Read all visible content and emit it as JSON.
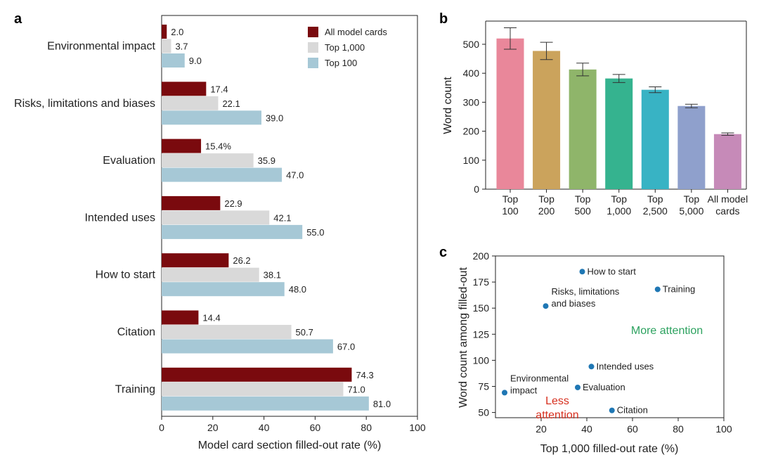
{
  "colors": {
    "all_model_cards": "#7a0a0e",
    "top_1000": "#d9d9d9",
    "top_100": "#a6c8d6",
    "scatter_point": "#1f77b4",
    "more_attention": "#2ca25f",
    "less_attention": "#d7301f",
    "bar_b": [
      "#e9879a",
      "#cba35c",
      "#8fb56a",
      "#35b38f",
      "#38b3c4",
      "#8fa0cc",
      "#c68ab8"
    ]
  },
  "chart_data": [
    {
      "panel": "a",
      "type": "bar",
      "orientation": "horizontal",
      "categories": [
        "Environmental impact",
        "Risks, limitations and biases",
        "Evaluation",
        "Intended uses",
        "How to start",
        "Citation",
        "Training"
      ],
      "series": [
        {
          "name": "All model cards",
          "values": [
            2.0,
            17.4,
            15.4,
            22.9,
            26.2,
            14.4,
            74.3
          ]
        },
        {
          "name": "Top 1,000",
          "values": [
            3.7,
            22.1,
            35.9,
            42.1,
            38.1,
            50.7,
            71.0
          ]
        },
        {
          "name": "Top 100",
          "values": [
            9.0,
            39.0,
            47.0,
            55.0,
            48.0,
            67.0,
            81.0
          ]
        }
      ],
      "value_labels": [
        [
          "2.0",
          "17.4",
          "15.4%",
          "22.9",
          "26.2",
          "14.4",
          "74.3"
        ],
        [
          "3.7",
          "22.1",
          "35.9",
          "42.1",
          "38.1",
          "50.7",
          "71.0"
        ],
        [
          "9.0",
          "39.0",
          "47.0",
          "55.0",
          "48.0",
          "67.0",
          "81.0"
        ]
      ],
      "xlabel": "Model card section filled-out rate (%)",
      "xlim": [
        0,
        100
      ],
      "xticks": [
        "0",
        "20",
        "40",
        "60",
        "80",
        "100"
      ],
      "legend": "top-right"
    },
    {
      "panel": "b",
      "type": "bar",
      "categories": [
        [
          "Top",
          "100"
        ],
        [
          "Top",
          "200"
        ],
        [
          "Top",
          "500"
        ],
        [
          "Top",
          "1,000"
        ],
        [
          "Top",
          "2,500"
        ],
        [
          "Top",
          "5,000"
        ],
        [
          "All model",
          "cards"
        ]
      ],
      "values": [
        520,
        477,
        413,
        382,
        343,
        287,
        190
      ],
      "errors": [
        37,
        30,
        22,
        14,
        10,
        6,
        4
      ],
      "ylabel": "Word count",
      "ylim": [
        0,
        580
      ],
      "yticks": [
        "0",
        "100",
        "200",
        "300",
        "400",
        "500"
      ],
      "grid": false
    },
    {
      "panel": "c",
      "type": "scatter",
      "points": [
        {
          "x": 38,
          "y": 185,
          "label": [
            "How to start"
          ]
        },
        {
          "x": 71,
          "y": 168,
          "label": [
            "Training"
          ]
        },
        {
          "x": 22,
          "y": 152,
          "label": [
            "Risks, limitations",
            "and biases"
          ]
        },
        {
          "x": 42,
          "y": 94,
          "label": [
            "Intended uses"
          ]
        },
        {
          "x": 36,
          "y": 74,
          "label": [
            "Evaluation"
          ]
        },
        {
          "x": 4,
          "y": 69,
          "label": [
            "Environmental",
            "impact"
          ]
        },
        {
          "x": 51,
          "y": 52,
          "label": [
            "Citation"
          ]
        }
      ],
      "annotations": [
        {
          "text": [
            "More attention"
          ],
          "color_key": "more_attention"
        },
        {
          "text": [
            "Less",
            "attention"
          ],
          "color_key": "less_attention"
        }
      ],
      "xlabel": "Top 1,000 filled-out rate (%)",
      "ylabel": "Word count among filled-out",
      "xlim": [
        0,
        100
      ],
      "ylim": [
        45,
        200
      ],
      "xticks": [
        "20",
        "40",
        "60",
        "80",
        "100"
      ],
      "yticks": [
        "50",
        "75",
        "100",
        "125",
        "150",
        "175",
        "200"
      ]
    }
  ],
  "panel_letters": [
    "a",
    "b",
    "c"
  ]
}
